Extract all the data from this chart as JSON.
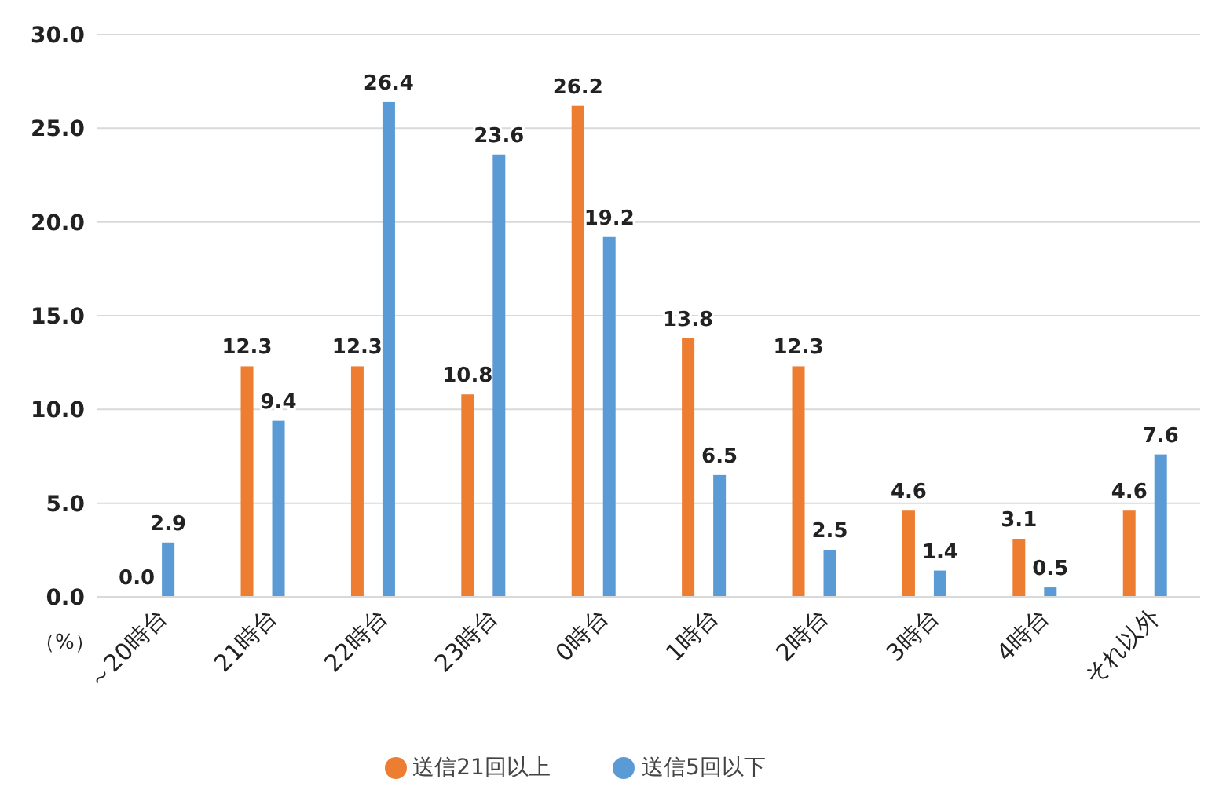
{
  "chart_data": {
    "type": "bar",
    "ylabel": "（%）",
    "categories": [
      "～20時台",
      "21時台",
      "22時台",
      "23時台",
      "0時台",
      "1時台",
      "2時台",
      "3時台",
      "4時台",
      "それ以外"
    ],
    "series": [
      {
        "name": "送信21回以上",
        "color": "#ed7d31",
        "values": [
          0.0,
          12.3,
          12.3,
          10.8,
          26.2,
          13.8,
          12.3,
          4.6,
          3.1,
          4.6
        ],
        "value_labels": [
          "0.0",
          "12.3",
          "12.3",
          "10.8",
          "26.2",
          "13.8",
          "12.3",
          "4.6",
          "3.1",
          "4.6"
        ]
      },
      {
        "name": "送信5回以下",
        "color": "#5b9bd5",
        "values": [
          2.9,
          9.4,
          26.4,
          23.6,
          19.2,
          6.5,
          2.5,
          1.4,
          0.5,
          7.6
        ],
        "value_labels": [
          "2.9",
          "9.4",
          "26.4",
          "23.6",
          "19.2",
          "6.5",
          "2.5",
          "1.4",
          "0.5",
          "7.6"
        ]
      }
    ],
    "ylim": [
      0,
      30
    ],
    "yticks": [
      {
        "value": 0,
        "label": "0.0"
      },
      {
        "value": 5,
        "label": "5.0"
      },
      {
        "value": 10,
        "label": "10.0"
      },
      {
        "value": 15,
        "label": "15.0"
      },
      {
        "value": 20,
        "label": "20.0"
      },
      {
        "value": 25,
        "label": "25.0"
      },
      {
        "value": 30,
        "label": "30.0"
      }
    ],
    "grid": "y",
    "legend": "bottom"
  }
}
